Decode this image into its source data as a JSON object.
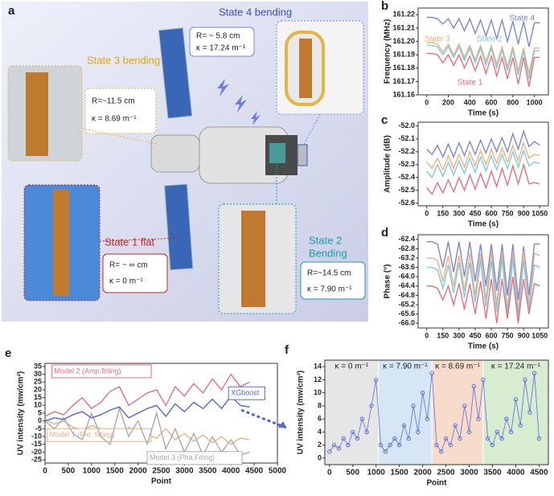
{
  "panel_a": {
    "letter": "a",
    "state4": {
      "title": "State 4 bending",
      "r": "R= ~ 5.8 cm",
      "k": "κ = 17.24 m⁻¹"
    },
    "state3": {
      "title": "State 3 bending",
      "r": "R=~11.5 cm",
      "k": "κ = 8.69 m⁻¹"
    },
    "state1": {
      "title": "State 1 flat",
      "r": "R= ~ ∞ cm",
      "k": "κ = 0 m⁻¹"
    },
    "state2": {
      "title": "State 2",
      "title2": "Bending",
      "r": "R=~14.5 cm",
      "k": "κ = 7.90 m⁻¹"
    }
  },
  "chart_data": [
    {
      "type": "line",
      "panel": "b",
      "ylabel": "Frequency (MHz)",
      "xlabel": "Time (s)",
      "xlim": [
        -80,
        1130
      ],
      "ylim": [
        161.16,
        161.225
      ],
      "xticks": [
        0,
        200,
        400,
        600,
        800,
        1000
      ],
      "yticks": [
        161.16,
        161.17,
        161.18,
        161.19,
        {
          "value": 161.2,
          "label": "161.20"
        },
        161.21,
        161.22
      ],
      "x": [
        0,
        50,
        100,
        150,
        200,
        250,
        300,
        350,
        400,
        450,
        500,
        550,
        600,
        650,
        700,
        750,
        800,
        850,
        900,
        950,
        1000,
        1050
      ],
      "series": [
        {
          "name": "State 4",
          "color": "#7b86d8",
          "values": [
            161.218,
            161.218,
            161.217,
            161.213,
            161.217,
            161.21,
            161.217,
            161.208,
            161.217,
            161.206,
            161.216,
            161.204,
            161.216,
            161.202,
            161.216,
            161.2,
            161.215,
            161.198,
            161.215,
            161.196,
            161.214,
            161.214
          ]
        },
        {
          "name": "State 3",
          "color": "#f0b080",
          "values": [
            161.199,
            161.199,
            161.198,
            161.192,
            161.198,
            161.19,
            161.198,
            161.188,
            161.197,
            161.186,
            161.197,
            161.185,
            161.197,
            161.183,
            161.196,
            161.181,
            161.196,
            161.178,
            161.195,
            161.176,
            161.195,
            161.195
          ]
        },
        {
          "name": "State 2",
          "color": "#7ecbd8",
          "values": [
            161.197,
            161.197,
            161.196,
            161.19,
            161.196,
            161.188,
            161.196,
            161.186,
            161.195,
            161.184,
            161.195,
            161.182,
            161.195,
            161.18,
            161.194,
            161.178,
            161.194,
            161.175,
            161.193,
            161.172,
            161.193,
            161.193
          ]
        },
        {
          "name": "State 1",
          "color": "#e8707a",
          "values": [
            161.191,
            161.191,
            161.19,
            161.184,
            161.19,
            161.182,
            161.19,
            161.18,
            161.189,
            161.178,
            161.189,
            161.176,
            161.189,
            161.174,
            161.188,
            161.172,
            161.188,
            161.168,
            161.188,
            161.166,
            161.188,
            161.188
          ]
        }
      ]
    },
    {
      "type": "line",
      "panel": "c",
      "ylabel": "Amplitude (dB)",
      "xlabel": "Time (s)",
      "xlim": [
        -80,
        1130
      ],
      "ylim": [
        -52.62,
        -51.97
      ],
      "xticks": [
        0,
        150,
        300,
        450,
        600,
        750,
        900,
        1050
      ],
      "yticks": [
        {
          "value": -52.0,
          "label": "-52.0"
        },
        -52.1,
        -52.2,
        -52.3,
        -52.4,
        -52.5,
        -52.6
      ],
      "x": [
        0,
        50,
        100,
        150,
        200,
        250,
        300,
        350,
        400,
        450,
        500,
        550,
        600,
        650,
        700,
        750,
        800,
        850,
        900,
        950,
        1000,
        1050
      ],
      "series": [
        {
          "color": "#7b86d8",
          "values": [
            -52.18,
            -52.22,
            -52.15,
            -52.24,
            -52.14,
            -52.24,
            -52.13,
            -52.23,
            -52.12,
            -52.22,
            -52.11,
            -52.21,
            -52.1,
            -52.2,
            -52.09,
            -52.2,
            -52.06,
            -52.18,
            -52.04,
            -52.16,
            -52.12,
            -52.15
          ]
        },
        {
          "color": "#f0b080",
          "values": [
            -52.28,
            -52.33,
            -52.25,
            -52.34,
            -52.23,
            -52.33,
            -52.22,
            -52.32,
            -52.2,
            -52.31,
            -52.19,
            -52.3,
            -52.18,
            -52.29,
            -52.17,
            -52.28,
            -52.15,
            -52.27,
            -52.13,
            -52.25,
            -52.22,
            -52.23
          ]
        },
        {
          "color": "#7ecbd8",
          "values": [
            -52.35,
            -52.4,
            -52.3,
            -52.39,
            -52.28,
            -52.38,
            -52.27,
            -52.37,
            -52.25,
            -52.36,
            -52.24,
            -52.35,
            -52.23,
            -52.34,
            -52.22,
            -52.33,
            -52.2,
            -52.32,
            -52.19,
            -52.31,
            -52.28,
            -52.29
          ]
        },
        {
          "color": "#e8707a",
          "values": [
            -52.48,
            -52.53,
            -52.44,
            -52.52,
            -52.42,
            -52.51,
            -52.4,
            -52.5,
            -52.38,
            -52.49,
            -52.37,
            -52.48,
            -52.35,
            -52.47,
            -52.33,
            -52.46,
            -52.31,
            -52.45,
            -52.3,
            -52.45,
            -52.44,
            -52.45
          ]
        }
      ]
    },
    {
      "type": "line",
      "panel": "d",
      "ylabel": "Phase (°)",
      "xlabel": "Time (s)",
      "xlim": [
        -80,
        1130
      ],
      "ylim": [
        -66.2,
        -62.2
      ],
      "xticks": [
        0,
        150,
        300,
        450,
        600,
        750,
        900,
        1050
      ],
      "yticks": [
        -62.4,
        -62.8,
        -63.2,
        -63.6,
        {
          "value": -64.0,
          "label": "-64.0"
        },
        -64.4,
        -64.8,
        -65.2,
        -65.6,
        {
          "value": -66.0,
          "label": "-66.0"
        }
      ],
      "x": [
        0,
        50,
        100,
        150,
        200,
        250,
        300,
        350,
        400,
        450,
        500,
        550,
        600,
        650,
        700,
        750,
        800,
        850,
        900,
        950,
        1000,
        1050
      ],
      "series": [
        {
          "color": "#7b86d8",
          "values": [
            -62.5,
            -62.5,
            -62.6,
            -63.6,
            -62.5,
            -63.8,
            -62.5,
            -64.0,
            -62.5,
            -64.2,
            -62.6,
            -64.4,
            -62.6,
            -64.6,
            -62.6,
            -64.8,
            -62.6,
            -65.0,
            -62.7,
            -64.8,
            -62.6,
            -62.6
          ]
        },
        {
          "color": "#f0b080",
          "values": [
            -63.2,
            -63.2,
            -63.3,
            -64.2,
            -63.1,
            -64.4,
            -63.1,
            -64.6,
            -63.0,
            -64.8,
            -63.0,
            -65.0,
            -62.9,
            -65.2,
            -62.9,
            -65.4,
            -62.9,
            -65.5,
            -62.9,
            -65.2,
            -63.0,
            -63.1
          ]
        },
        {
          "color": "#7ecbd8",
          "values": [
            -63.6,
            -63.6,
            -63.7,
            -64.5,
            -63.5,
            -64.7,
            -63.4,
            -64.9,
            -63.4,
            -65.1,
            -63.3,
            -65.3,
            -63.3,
            -65.5,
            -63.2,
            -65.6,
            -63.2,
            -65.8,
            -63.3,
            -65.4,
            -63.5,
            -63.6
          ]
        },
        {
          "color": "#e8707a",
          "values": [
            -64.4,
            -64.4,
            -64.5,
            -65.0,
            -64.4,
            -65.2,
            -64.3,
            -65.4,
            -64.3,
            -65.6,
            -64.2,
            -65.8,
            -64.1,
            -66.0,
            -64.1,
            -65.8,
            -64.0,
            -66.0,
            -64.1,
            -65.6,
            -64.3,
            -64.4
          ]
        }
      ]
    },
    {
      "type": "line",
      "panel": "e",
      "ylabel": "UV intensity (mw/cm²)",
      "xlabel": "Point",
      "xlim": [
        0,
        5000
      ],
      "ylim": [
        -27,
        37
      ],
      "xticks": [
        0,
        500,
        1000,
        1500,
        2000,
        2500,
        3000,
        3500,
        4000,
        4500,
        5000
      ],
      "yticks": [
        -25,
        -20,
        -15,
        -10,
        -5,
        0,
        5,
        10,
        15,
        20,
        25,
        30,
        35
      ],
      "x": [
        0,
        200,
        400,
        600,
        800,
        1000,
        1200,
        1400,
        1600,
        1800,
        2000,
        2200,
        2400,
        2600,
        2800,
        3000,
        3200,
        3400,
        3600,
        3800,
        4000,
        4200,
        4400
      ],
      "series": [
        {
          "name": "Model 2 (Amp.fitting)",
          "color": "#e8707a",
          "values": [
            3,
            6,
            4,
            10,
            15,
            8,
            12,
            19,
            22,
            10,
            14,
            18,
            20,
            10,
            22,
            16,
            24,
            18,
            27,
            20,
            30,
            22,
            25
          ]
        },
        {
          "name": "Model 1 (Fre. fitting)",
          "color": "#f0b080",
          "values": [
            1,
            -2,
            0,
            -4,
            -6,
            -3,
            -5,
            -8,
            -10,
            -4,
            -7,
            -9,
            -11,
            -5,
            -12,
            -8,
            -13,
            -9,
            -14,
            -10,
            -15,
            -11,
            -12
          ]
        },
        {
          "name": "Model 3 (Pha.Fiting)",
          "color": "#aaaaaa",
          "values": [
            0,
            -5,
            2,
            -8,
            -12,
            5,
            -10,
            -15,
            8,
            -10,
            0,
            -15,
            5,
            -18,
            -5,
            -20,
            -8,
            -22,
            -10,
            -20,
            -12,
            -22,
            -20
          ]
        },
        {
          "name": "XGboost",
          "color": "#5566dd",
          "values": [
            0,
            2,
            1,
            4,
            6,
            2,
            4,
            7,
            9,
            2,
            5,
            8,
            10,
            3,
            11,
            6,
            12,
            8,
            14,
            8,
            16,
            10,
            9
          ]
        }
      ]
    },
    {
      "type": "scatter",
      "panel": "f",
      "ylabel": "UV intensity (mw/cm²)",
      "xlabel": "Point",
      "xlim": [
        -100,
        4700
      ],
      "ylim": [
        -1,
        15
      ],
      "xticks": [
        0,
        500,
        1000,
        1500,
        2000,
        2500,
        3000,
        3500,
        4000,
        4500
      ],
      "yticks": [
        0,
        2,
        4,
        6,
        8,
        10,
        12,
        14
      ],
      "regions": [
        {
          "label": "κ = 0 m⁻¹",
          "xrange": [
            -100,
            1050
          ],
          "color": "#e6e6e6"
        },
        {
          "label": "κ = 7.90 m⁻¹",
          "xrange": [
            1050,
            2200
          ],
          "color": "#d6e6f6"
        },
        {
          "label": "κ = 8.69 m⁻¹",
          "xrange": [
            2200,
            3300
          ],
          "color": "#f8dccb"
        },
        {
          "label": "κ = 17.24 m⁻¹",
          "xrange": [
            3300,
            4700
          ],
          "color": "#d8ecd0"
        }
      ],
      "x": [
        0,
        100,
        200,
        300,
        400,
        500,
        600,
        700,
        800,
        900,
        1000,
        1100,
        1200,
        1300,
        1400,
        1500,
        1600,
        1700,
        1800,
        1900,
        2000,
        2100,
        2200,
        2300,
        2400,
        2500,
        2600,
        2700,
        2800,
        2900,
        3000,
        3100,
        3200,
        3300,
        3400,
        3500,
        3600,
        3700,
        3800,
        3900,
        4000,
        4100,
        4200,
        4300,
        4400,
        4500
      ],
      "series": [
        {
          "color": "#5a6ee0",
          "values": [
            1,
            2,
            1.5,
            3,
            2,
            4,
            3,
            6,
            4,
            8,
            12,
            2,
            1,
            2,
            3,
            2,
            5,
            3,
            8,
            4,
            10,
            6,
            13,
            2,
            1,
            3,
            2,
            5,
            3,
            8,
            4,
            11,
            6,
            12,
            3,
            2,
            4,
            3,
            6,
            4,
            9,
            5,
            12,
            7,
            13,
            3
          ]
        }
      ]
    }
  ]
}
